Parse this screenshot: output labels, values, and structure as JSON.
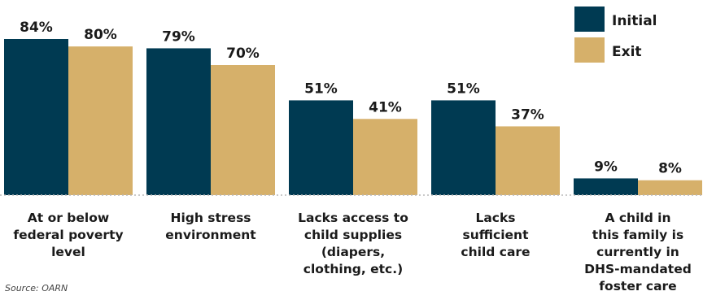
{
  "chart_data": {
    "type": "bar",
    "categories": [
      [
        "At or below",
        "federal poverty",
        "level"
      ],
      [
        "High stress",
        "environment"
      ],
      [
        "Lacks access to",
        "child supplies",
        "(diapers,",
        "clothing, etc.)"
      ],
      [
        "Lacks",
        "sufficient",
        "child care"
      ],
      [
        "A child in",
        "this family is",
        "currently in",
        "DHS-mandated",
        "foster care"
      ]
    ],
    "series": [
      {
        "name": "Initial",
        "values": [
          84,
          79,
          51,
          51,
          9
        ],
        "labels": [
          "84%",
          "79%",
          "51%",
          "51%",
          "9%"
        ],
        "color": "#003a52"
      },
      {
        "name": "Exit",
        "values": [
          80,
          70,
          41,
          37,
          8
        ],
        "labels": [
          "80%",
          "70%",
          "41%",
          "37%",
          "8%"
        ],
        "color": "#d6b06a"
      }
    ],
    "ylim": [
      0,
      100
    ],
    "grid": false,
    "legend_position": "top-right",
    "source": "Source: OARN"
  }
}
